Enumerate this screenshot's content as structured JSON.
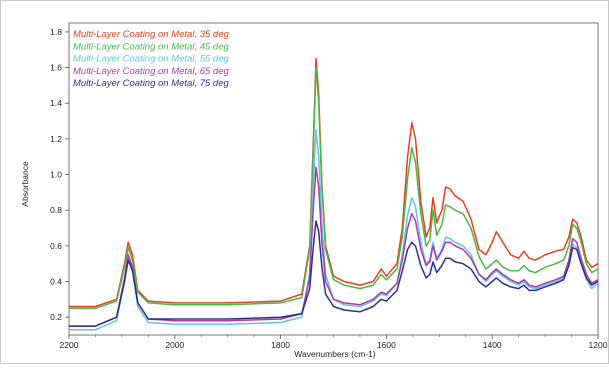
{
  "chart_data": {
    "type": "line",
    "xlabel": "Wavenumbers (cm-1)",
    "ylabel": "Absorbance",
    "xlim": [
      2200,
      1200
    ],
    "ylim": [
      0.1,
      1.85
    ],
    "x_reversed": true,
    "grid": false,
    "legend_position": "top-left",
    "x_ticks": [
      2200,
      2000,
      1800,
      1600,
      1400,
      1200
    ],
    "y_ticks": [
      0.2,
      0.4,
      0.6,
      0.8,
      1.0,
      1.2,
      1.4,
      1.6,
      1.8
    ],
    "x_tick_labels": [
      "2200",
      "2000",
      "1800",
      "1600",
      "1400",
      "1200"
    ],
    "y_tick_labels": [
      "0.2",
      "0.4",
      "0.6",
      "0.8",
      "1.0",
      "1.2",
      "1.4",
      "1.6",
      "1.8"
    ],
    "series": [
      {
        "name": "Multi-Layer Coating on Metal, 35 deg",
        "color": "#e8401c",
        "points": [
          [
            2200,
            0.26
          ],
          [
            2150,
            0.26
          ],
          [
            2110,
            0.3
          ],
          [
            2095,
            0.5
          ],
          [
            2088,
            0.62
          ],
          [
            2080,
            0.55
          ],
          [
            2070,
            0.35
          ],
          [
            2050,
            0.29
          ],
          [
            2000,
            0.28
          ],
          [
            1900,
            0.28
          ],
          [
            1800,
            0.29
          ],
          [
            1760,
            0.33
          ],
          [
            1745,
            0.6
          ],
          [
            1738,
            1.2
          ],
          [
            1733,
            1.65
          ],
          [
            1728,
            1.45
          ],
          [
            1722,
            0.95
          ],
          [
            1715,
            0.6
          ],
          [
            1700,
            0.43
          ],
          [
            1680,
            0.4
          ],
          [
            1650,
            0.38
          ],
          [
            1625,
            0.4
          ],
          [
            1610,
            0.47
          ],
          [
            1600,
            0.43
          ],
          [
            1580,
            0.5
          ],
          [
            1570,
            0.7
          ],
          [
            1560,
            1.1
          ],
          [
            1552,
            1.29
          ],
          [
            1545,
            1.2
          ],
          [
            1535,
            0.85
          ],
          [
            1525,
            0.65
          ],
          [
            1518,
            0.7
          ],
          [
            1512,
            0.87
          ],
          [
            1505,
            0.73
          ],
          [
            1495,
            0.8
          ],
          [
            1488,
            0.93
          ],
          [
            1480,
            0.92
          ],
          [
            1470,
            0.88
          ],
          [
            1455,
            0.85
          ],
          [
            1440,
            0.75
          ],
          [
            1425,
            0.58
          ],
          [
            1412,
            0.55
          ],
          [
            1400,
            0.62
          ],
          [
            1392,
            0.68
          ],
          [
            1380,
            0.62
          ],
          [
            1365,
            0.55
          ],
          [
            1350,
            0.53
          ],
          [
            1340,
            0.57
          ],
          [
            1330,
            0.53
          ],
          [
            1318,
            0.52
          ],
          [
            1300,
            0.55
          ],
          [
            1280,
            0.57
          ],
          [
            1265,
            0.58
          ],
          [
            1255,
            0.65
          ],
          [
            1248,
            0.75
          ],
          [
            1240,
            0.73
          ],
          [
            1232,
            0.65
          ],
          [
            1222,
            0.52
          ],
          [
            1212,
            0.48
          ],
          [
            1200,
            0.5
          ]
        ]
      },
      {
        "name": "Multi-Layer Coating on Metal, 45 deg",
        "color": "#4bb849",
        "points": [
          [
            2200,
            0.25
          ],
          [
            2150,
            0.25
          ],
          [
            2110,
            0.29
          ],
          [
            2095,
            0.48
          ],
          [
            2088,
            0.59
          ],
          [
            2080,
            0.52
          ],
          [
            2070,
            0.34
          ],
          [
            2050,
            0.28
          ],
          [
            2000,
            0.27
          ],
          [
            1900,
            0.27
          ],
          [
            1800,
            0.28
          ],
          [
            1760,
            0.31
          ],
          [
            1745,
            0.58
          ],
          [
            1738,
            1.15
          ],
          [
            1733,
            1.6
          ],
          [
            1728,
            1.4
          ],
          [
            1722,
            0.92
          ],
          [
            1715,
            0.58
          ],
          [
            1700,
            0.41
          ],
          [
            1680,
            0.38
          ],
          [
            1650,
            0.36
          ],
          [
            1625,
            0.38
          ],
          [
            1610,
            0.44
          ],
          [
            1600,
            0.41
          ],
          [
            1580,
            0.47
          ],
          [
            1570,
            0.65
          ],
          [
            1560,
            0.98
          ],
          [
            1552,
            1.15
          ],
          [
            1545,
            1.07
          ],
          [
            1535,
            0.78
          ],
          [
            1525,
            0.6
          ],
          [
            1518,
            0.63
          ],
          [
            1512,
            0.8
          ],
          [
            1505,
            0.66
          ],
          [
            1495,
            0.72
          ],
          [
            1488,
            0.83
          ],
          [
            1480,
            0.82
          ],
          [
            1470,
            0.8
          ],
          [
            1455,
            0.78
          ],
          [
            1440,
            0.7
          ],
          [
            1425,
            0.54
          ],
          [
            1412,
            0.47
          ],
          [
            1400,
            0.5
          ],
          [
            1392,
            0.52
          ],
          [
            1380,
            0.48
          ],
          [
            1365,
            0.46
          ],
          [
            1350,
            0.46
          ],
          [
            1340,
            0.49
          ],
          [
            1330,
            0.46
          ],
          [
            1318,
            0.45
          ],
          [
            1300,
            0.48
          ],
          [
            1280,
            0.5
          ],
          [
            1265,
            0.52
          ],
          [
            1255,
            0.6
          ],
          [
            1248,
            0.72
          ],
          [
            1240,
            0.7
          ],
          [
            1232,
            0.62
          ],
          [
            1222,
            0.5
          ],
          [
            1212,
            0.45
          ],
          [
            1200,
            0.47
          ]
        ]
      },
      {
        "name": "Multi-Layer Coating on Metal, 55 deg",
        "color": "#62c6dc",
        "points": [
          [
            2200,
            0.13
          ],
          [
            2150,
            0.13
          ],
          [
            2110,
            0.18
          ],
          [
            2095,
            0.4
          ],
          [
            2088,
            0.53
          ],
          [
            2080,
            0.46
          ],
          [
            2070,
            0.26
          ],
          [
            2050,
            0.17
          ],
          [
            2000,
            0.16
          ],
          [
            1900,
            0.16
          ],
          [
            1800,
            0.17
          ],
          [
            1760,
            0.2
          ],
          [
            1745,
            0.45
          ],
          [
            1738,
            0.95
          ],
          [
            1733,
            1.25
          ],
          [
            1728,
            1.1
          ],
          [
            1722,
            0.72
          ],
          [
            1715,
            0.44
          ],
          [
            1700,
            0.3
          ],
          [
            1680,
            0.27
          ],
          [
            1650,
            0.26
          ],
          [
            1625,
            0.29
          ],
          [
            1610,
            0.33
          ],
          [
            1600,
            0.32
          ],
          [
            1580,
            0.39
          ],
          [
            1570,
            0.55
          ],
          [
            1560,
            0.77
          ],
          [
            1552,
            0.87
          ],
          [
            1545,
            0.82
          ],
          [
            1535,
            0.62
          ],
          [
            1525,
            0.5
          ],
          [
            1518,
            0.52
          ],
          [
            1512,
            0.62
          ],
          [
            1505,
            0.53
          ],
          [
            1495,
            0.58
          ],
          [
            1488,
            0.65
          ],
          [
            1480,
            0.64
          ],
          [
            1470,
            0.62
          ],
          [
            1455,
            0.6
          ],
          [
            1440,
            0.55
          ],
          [
            1425,
            0.44
          ],
          [
            1412,
            0.4
          ],
          [
            1400,
            0.44
          ],
          [
            1392,
            0.46
          ],
          [
            1380,
            0.43
          ],
          [
            1365,
            0.4
          ],
          [
            1350,
            0.38
          ],
          [
            1340,
            0.4
          ],
          [
            1330,
            0.37
          ],
          [
            1318,
            0.36
          ],
          [
            1300,
            0.38
          ],
          [
            1280,
            0.4
          ],
          [
            1265,
            0.42
          ],
          [
            1255,
            0.5
          ],
          [
            1248,
            0.61
          ],
          [
            1240,
            0.59
          ],
          [
            1232,
            0.5
          ],
          [
            1222,
            0.41
          ],
          [
            1212,
            0.36
          ],
          [
            1200,
            0.39
          ]
        ]
      },
      {
        "name": "Multi-Layer Coating on Metal, 65 deg",
        "color": "#b03aa8",
        "points": [
          [
            2200,
            0.15
          ],
          [
            2150,
            0.15
          ],
          [
            2110,
            0.2
          ],
          [
            2095,
            0.42
          ],
          [
            2088,
            0.55
          ],
          [
            2080,
            0.48
          ],
          [
            2070,
            0.28
          ],
          [
            2050,
            0.19
          ],
          [
            2000,
            0.18
          ],
          [
            1900,
            0.18
          ],
          [
            1800,
            0.19
          ],
          [
            1760,
            0.22
          ],
          [
            1745,
            0.42
          ],
          [
            1738,
            0.82
          ],
          [
            1733,
            1.04
          ],
          [
            1728,
            0.93
          ],
          [
            1722,
            0.62
          ],
          [
            1715,
            0.4
          ],
          [
            1700,
            0.3
          ],
          [
            1680,
            0.28
          ],
          [
            1650,
            0.27
          ],
          [
            1625,
            0.3
          ],
          [
            1610,
            0.34
          ],
          [
            1600,
            0.33
          ],
          [
            1580,
            0.39
          ],
          [
            1570,
            0.52
          ],
          [
            1560,
            0.7
          ],
          [
            1552,
            0.78
          ],
          [
            1545,
            0.74
          ],
          [
            1535,
            0.58
          ],
          [
            1525,
            0.49
          ],
          [
            1518,
            0.51
          ],
          [
            1512,
            0.6
          ],
          [
            1505,
            0.52
          ],
          [
            1495,
            0.57
          ],
          [
            1488,
            0.62
          ],
          [
            1480,
            0.62
          ],
          [
            1470,
            0.6
          ],
          [
            1455,
            0.58
          ],
          [
            1440,
            0.53
          ],
          [
            1425,
            0.44
          ],
          [
            1412,
            0.41
          ],
          [
            1400,
            0.45
          ],
          [
            1392,
            0.47
          ],
          [
            1380,
            0.44
          ],
          [
            1365,
            0.41
          ],
          [
            1350,
            0.39
          ],
          [
            1340,
            0.41
          ],
          [
            1330,
            0.38
          ],
          [
            1318,
            0.37
          ],
          [
            1300,
            0.39
          ],
          [
            1280,
            0.41
          ],
          [
            1265,
            0.43
          ],
          [
            1255,
            0.52
          ],
          [
            1248,
            0.64
          ],
          [
            1240,
            0.62
          ],
          [
            1232,
            0.53
          ],
          [
            1222,
            0.44
          ],
          [
            1212,
            0.39
          ],
          [
            1200,
            0.41
          ]
        ]
      },
      {
        "name": "Multi-Layer Coating on Metal, 75 deg",
        "color": "#2b2f96",
        "points": [
          [
            2200,
            0.15
          ],
          [
            2150,
            0.15
          ],
          [
            2110,
            0.2
          ],
          [
            2095,
            0.4
          ],
          [
            2088,
            0.52
          ],
          [
            2080,
            0.46
          ],
          [
            2070,
            0.28
          ],
          [
            2050,
            0.19
          ],
          [
            2000,
            0.19
          ],
          [
            1900,
            0.19
          ],
          [
            1800,
            0.2
          ],
          [
            1760,
            0.22
          ],
          [
            1745,
            0.36
          ],
          [
            1738,
            0.6
          ],
          [
            1733,
            0.74
          ],
          [
            1728,
            0.68
          ],
          [
            1722,
            0.48
          ],
          [
            1715,
            0.33
          ],
          [
            1700,
            0.26
          ],
          [
            1680,
            0.24
          ],
          [
            1650,
            0.23
          ],
          [
            1625,
            0.26
          ],
          [
            1610,
            0.3
          ],
          [
            1600,
            0.29
          ],
          [
            1580,
            0.35
          ],
          [
            1570,
            0.46
          ],
          [
            1560,
            0.58
          ],
          [
            1552,
            0.62
          ],
          [
            1545,
            0.6
          ],
          [
            1535,
            0.49
          ],
          [
            1525,
            0.42
          ],
          [
            1518,
            0.44
          ],
          [
            1512,
            0.51
          ],
          [
            1505,
            0.45
          ],
          [
            1495,
            0.49
          ],
          [
            1488,
            0.53
          ],
          [
            1480,
            0.53
          ],
          [
            1470,
            0.51
          ],
          [
            1455,
            0.5
          ],
          [
            1440,
            0.47
          ],
          [
            1425,
            0.4
          ],
          [
            1412,
            0.37
          ],
          [
            1400,
            0.4
          ],
          [
            1392,
            0.42
          ],
          [
            1380,
            0.39
          ],
          [
            1365,
            0.37
          ],
          [
            1350,
            0.36
          ],
          [
            1340,
            0.38
          ],
          [
            1330,
            0.35
          ],
          [
            1318,
            0.35
          ],
          [
            1300,
            0.37
          ],
          [
            1280,
            0.39
          ],
          [
            1265,
            0.41
          ],
          [
            1255,
            0.49
          ],
          [
            1248,
            0.59
          ],
          [
            1240,
            0.58
          ],
          [
            1232,
            0.5
          ],
          [
            1222,
            0.42
          ],
          [
            1212,
            0.38
          ],
          [
            1200,
            0.4
          ]
        ]
      }
    ]
  }
}
